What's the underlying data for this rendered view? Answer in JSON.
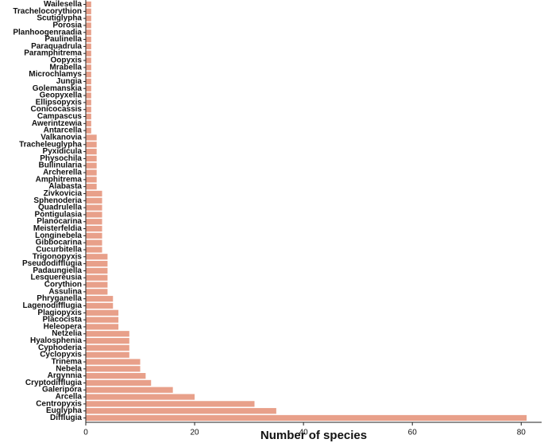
{
  "chart_data": {
    "type": "bar",
    "orientation": "horizontal",
    "title": "",
    "xlabel": "Number of species",
    "ylabel": "",
    "xlim": [
      0,
      82
    ],
    "xticks": [
      0,
      20,
      40,
      60,
      80
    ],
    "grid": false,
    "legend": "none",
    "bar_color": "#e8a08a",
    "categories": [
      "Wailesella",
      "Trachelocorythion",
      "Scutiglypha",
      "Porosia",
      "Planhoogenraadia",
      "Paulinella",
      "Paraquadrula",
      "Paramphitrema",
      "Oopyxis",
      "Mrabella",
      "Microchlamys",
      "Jungia",
      "Golemanskia",
      "Geopyxella",
      "Ellipsopyxis",
      "Conicocassis",
      "Campascus",
      "Awerintzewia",
      "Antarcella",
      "Valkanovia",
      "Tracheleuglypha",
      "Pyxidicula",
      "Physochila",
      "Bullinularia",
      "Archerella",
      "Amphitrema",
      "Alabasta",
      "Zivkovicia",
      "Sphenoderia",
      "Quadrulella",
      "Pontigulasia",
      "Planocarina",
      "Meisterfeldia",
      "Longinebela",
      "Gibbocarina",
      "Cucurbitella",
      "Trigonopyxis",
      "Pseudodifflugia",
      "Padaungiella",
      "Lesquereusia",
      "Corythion",
      "Assulina",
      "Phryganella",
      "Lagenodifflugia",
      "Plagiopyxis",
      "Placocista",
      "Heleopera",
      "Netzelia",
      "Hyalosphenia",
      "Cyphoderia",
      "Cyclopyxis",
      "Trinema",
      "Nebela",
      "Argynnia",
      "Cryptodifflugia",
      "Galeripora",
      "Arcella",
      "Centropyxis",
      "Euglypha",
      "Difflugia"
    ],
    "values": [
      1,
      1,
      1,
      1,
      1,
      1,
      1,
      1,
      1,
      1,
      1,
      1,
      1,
      1,
      1,
      1,
      1,
      1,
      1,
      2,
      2,
      2,
      2,
      2,
      2,
      2,
      2,
      3,
      3,
      3,
      3,
      3,
      3,
      3,
      3,
      3,
      4,
      4,
      4,
      4,
      4,
      4,
      5,
      5,
      6,
      6,
      6,
      8,
      8,
      8,
      8,
      10,
      10,
      11,
      12,
      16,
      20,
      31,
      35,
      81
    ]
  }
}
